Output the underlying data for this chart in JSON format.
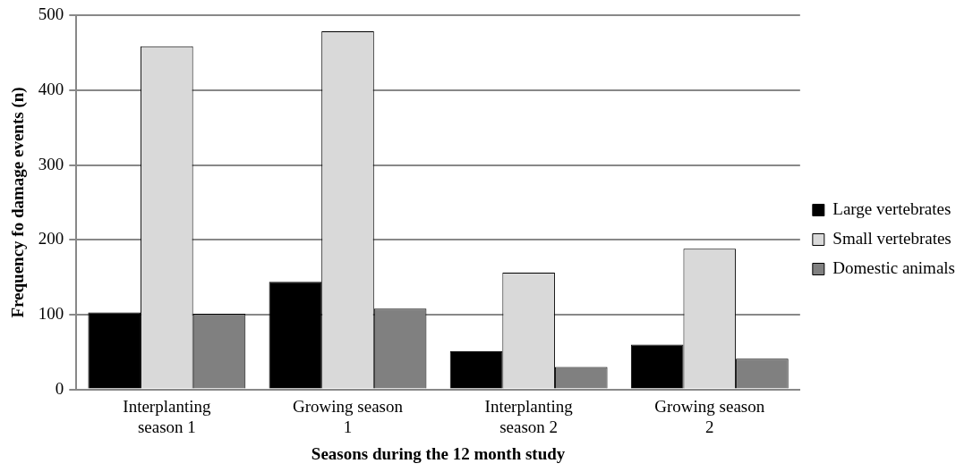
{
  "chart_data": {
    "type": "bar",
    "xlabel": "Seasons during the 12 month study",
    "ylabel": "Frequency fo damage events (n)",
    "categories": [
      "Interplanting season 1",
      "Growing season 1",
      "Interplanting season 2",
      "Growing season 2"
    ],
    "series": [
      {
        "name": "Large vertebrates",
        "color": "#000000",
        "values": [
          103,
          144,
          51,
          60
        ]
      },
      {
        "name": "Small vertebrates",
        "color": "#d9d9d9",
        "values": [
          459,
          479,
          156,
          188
        ]
      },
      {
        "name": "Domestic animals",
        "color": "#808080",
        "values": [
          101,
          108,
          30,
          41
        ]
      }
    ],
    "ylim": [
      0,
      500
    ],
    "yticks": [
      0,
      100,
      200,
      300,
      400,
      500
    ],
    "grid": "y",
    "legend": "right"
  }
}
